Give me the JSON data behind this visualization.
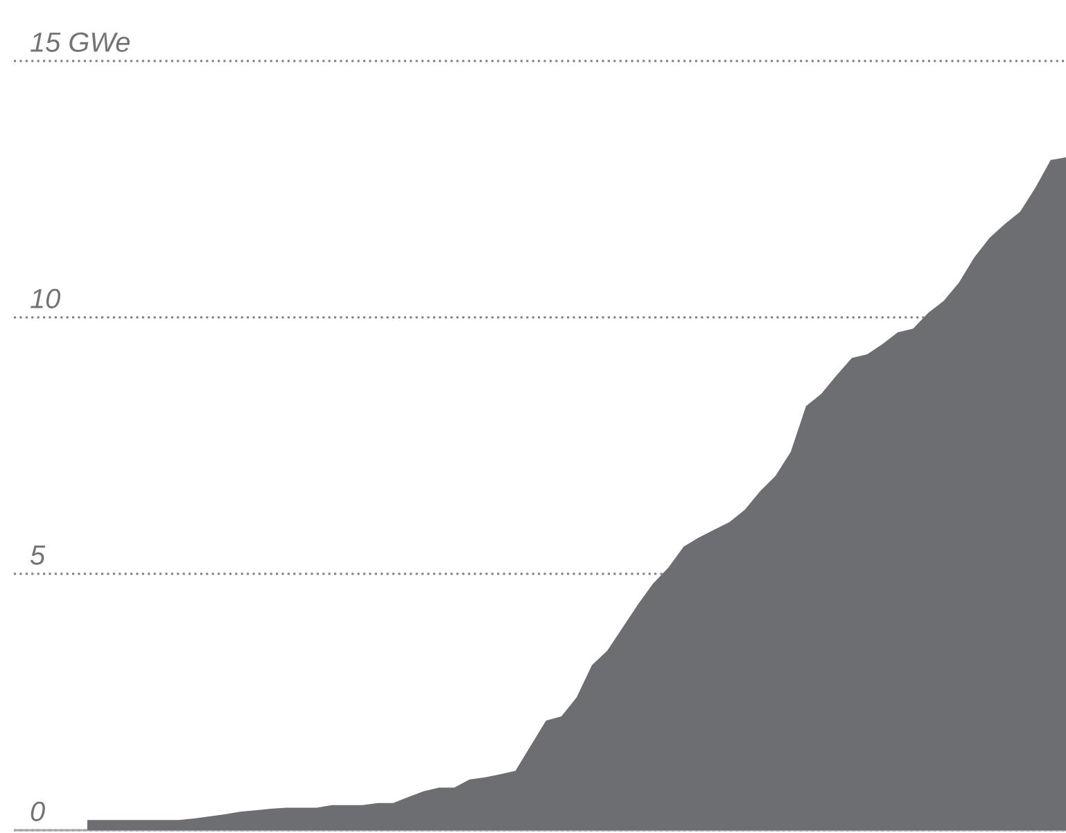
{
  "chart_data": {
    "type": "area",
    "categories": [
      null,
      null,
      null,
      null,
      null,
      null,
      null,
      null,
      null,
      null,
      null,
      null,
      null,
      null,
      null,
      null,
      null,
      null,
      null,
      null,
      null,
      null,
      null,
      null,
      null,
      null,
      null,
      null,
      null,
      null,
      null,
      null,
      null,
      null,
      null,
      null,
      null,
      null,
      null,
      null,
      null,
      null,
      null,
      null,
      null,
      null,
      null,
      null,
      null,
      null,
      null,
      null,
      null,
      null,
      null,
      null,
      null,
      null,
      null,
      null,
      null,
      null,
      null,
      null,
      null
    ],
    "values": [
      0.2,
      0.2,
      0.2,
      0.2,
      0.2,
      0.2,
      0.2,
      0.23,
      0.27,
      0.31,
      0.36,
      0.39,
      0.42,
      0.44,
      0.44,
      0.44,
      0.49,
      0.49,
      0.49,
      0.53,
      0.53,
      0.65,
      0.76,
      0.83,
      0.83,
      0.99,
      1.03,
      1.09,
      1.16,
      1.65,
      2.14,
      2.22,
      2.59,
      3.22,
      3.5,
      3.95,
      4.4,
      4.81,
      5.12,
      5.53,
      5.71,
      5.86,
      6.01,
      6.25,
      6.61,
      6.91,
      7.38,
      8.27,
      8.51,
      8.87,
      9.21,
      9.28,
      9.48,
      9.71,
      9.78,
      10.09,
      10.32,
      10.68,
      11.17,
      11.55,
      11.82,
      12.06,
      12.53,
      13.07,
      13.12
    ],
    "color": "#6d6e72",
    "ylim": [
      0,
      15
    ],
    "yticks": [
      0,
      5,
      10,
      {
        "value": 15,
        "label": "15 GWe"
      }
    ],
    "grid": "y"
  }
}
